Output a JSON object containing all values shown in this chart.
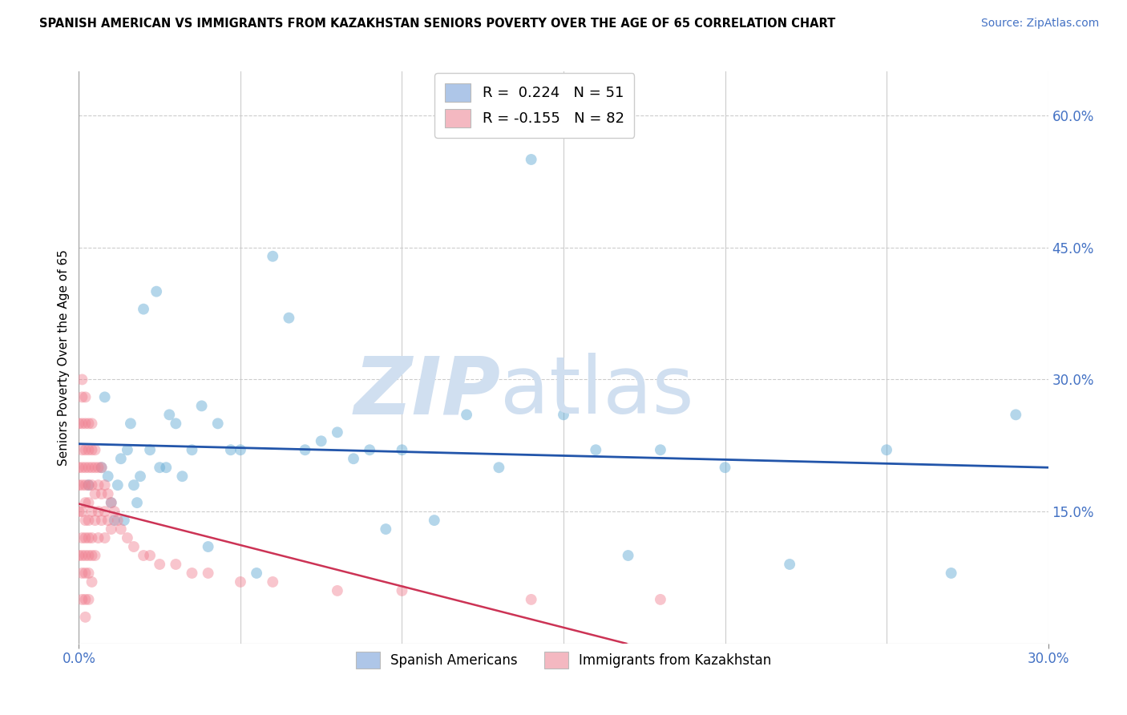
{
  "title": "SPANISH AMERICAN VS IMMIGRANTS FROM KAZAKHSTAN SENIORS POVERTY OVER THE AGE OF 65 CORRELATION CHART",
  "source": "Source: ZipAtlas.com",
  "ylabel": "Seniors Poverty Over the Age of 65",
  "right_yticks": [
    "60.0%",
    "45.0%",
    "30.0%",
    "15.0%"
  ],
  "right_ytick_vals": [
    0.6,
    0.45,
    0.3,
    0.15
  ],
  "legend_blue_label_r": "R =  0.224",
  "legend_blue_label_n": "N = 51",
  "legend_pink_label_r": "R = -0.155",
  "legend_pink_label_n": "N = 82",
  "legend_blue_color": "#aec6e8",
  "legend_pink_color": "#f4b8c1",
  "scatter_blue_color": "#6aaed6",
  "scatter_pink_color": "#f08090",
  "line_blue_color": "#2255aa",
  "line_pink_color": "#cc3355",
  "watermark_color": "#d0dff0",
  "xlim": [
    0.0,
    0.3
  ],
  "ylim": [
    0.0,
    0.65
  ],
  "legend_bottom_labels": [
    "Spanish Americans",
    "Immigrants from Kazakhstan"
  ],
  "blue_points_x": [
    0.003,
    0.007,
    0.008,
    0.009,
    0.01,
    0.011,
    0.012,
    0.013,
    0.014,
    0.015,
    0.016,
    0.017,
    0.018,
    0.019,
    0.02,
    0.022,
    0.024,
    0.025,
    0.027,
    0.028,
    0.03,
    0.032,
    0.035,
    0.038,
    0.04,
    0.043,
    0.047,
    0.05,
    0.055,
    0.06,
    0.065,
    0.07,
    0.075,
    0.08,
    0.085,
    0.09,
    0.095,
    0.1,
    0.11,
    0.12,
    0.13,
    0.14,
    0.15,
    0.16,
    0.17,
    0.18,
    0.2,
    0.22,
    0.25,
    0.27,
    0.29
  ],
  "blue_points_y": [
    0.18,
    0.2,
    0.28,
    0.19,
    0.16,
    0.14,
    0.18,
    0.21,
    0.14,
    0.22,
    0.25,
    0.18,
    0.16,
    0.19,
    0.38,
    0.22,
    0.4,
    0.2,
    0.2,
    0.26,
    0.25,
    0.19,
    0.22,
    0.27,
    0.11,
    0.25,
    0.22,
    0.22,
    0.08,
    0.44,
    0.37,
    0.22,
    0.23,
    0.24,
    0.21,
    0.22,
    0.13,
    0.22,
    0.14,
    0.26,
    0.2,
    0.55,
    0.26,
    0.22,
    0.1,
    0.22,
    0.2,
    0.09,
    0.22,
    0.08,
    0.26
  ],
  "pink_points_x": [
    0.0,
    0.0,
    0.0,
    0.0,
    0.0,
    0.001,
    0.001,
    0.001,
    0.001,
    0.001,
    0.001,
    0.001,
    0.001,
    0.001,
    0.001,
    0.001,
    0.002,
    0.002,
    0.002,
    0.002,
    0.002,
    0.002,
    0.002,
    0.002,
    0.002,
    0.002,
    0.002,
    0.002,
    0.003,
    0.003,
    0.003,
    0.003,
    0.003,
    0.003,
    0.003,
    0.003,
    0.003,
    0.003,
    0.004,
    0.004,
    0.004,
    0.004,
    0.004,
    0.004,
    0.004,
    0.004,
    0.005,
    0.005,
    0.005,
    0.005,
    0.005,
    0.006,
    0.006,
    0.006,
    0.006,
    0.007,
    0.007,
    0.007,
    0.008,
    0.008,
    0.008,
    0.009,
    0.009,
    0.01,
    0.01,
    0.011,
    0.012,
    0.013,
    0.015,
    0.017,
    0.02,
    0.022,
    0.025,
    0.03,
    0.035,
    0.04,
    0.05,
    0.06,
    0.08,
    0.1,
    0.14,
    0.18
  ],
  "pink_points_y": [
    0.2,
    0.25,
    0.18,
    0.15,
    0.1,
    0.28,
    0.3,
    0.25,
    0.22,
    0.2,
    0.18,
    0.15,
    0.12,
    0.1,
    0.08,
    0.05,
    0.28,
    0.25,
    0.22,
    0.2,
    0.18,
    0.16,
    0.14,
    0.12,
    0.1,
    0.08,
    0.05,
    0.03,
    0.25,
    0.22,
    0.2,
    0.18,
    0.16,
    0.14,
    0.12,
    0.1,
    0.08,
    0.05,
    0.25,
    0.22,
    0.2,
    0.18,
    0.15,
    0.12,
    0.1,
    0.07,
    0.22,
    0.2,
    0.17,
    0.14,
    0.1,
    0.2,
    0.18,
    0.15,
    0.12,
    0.2,
    0.17,
    0.14,
    0.18,
    0.15,
    0.12,
    0.17,
    0.14,
    0.16,
    0.13,
    0.15,
    0.14,
    0.13,
    0.12,
    0.11,
    0.1,
    0.1,
    0.09,
    0.09,
    0.08,
    0.08,
    0.07,
    0.07,
    0.06,
    0.06,
    0.05,
    0.05
  ]
}
